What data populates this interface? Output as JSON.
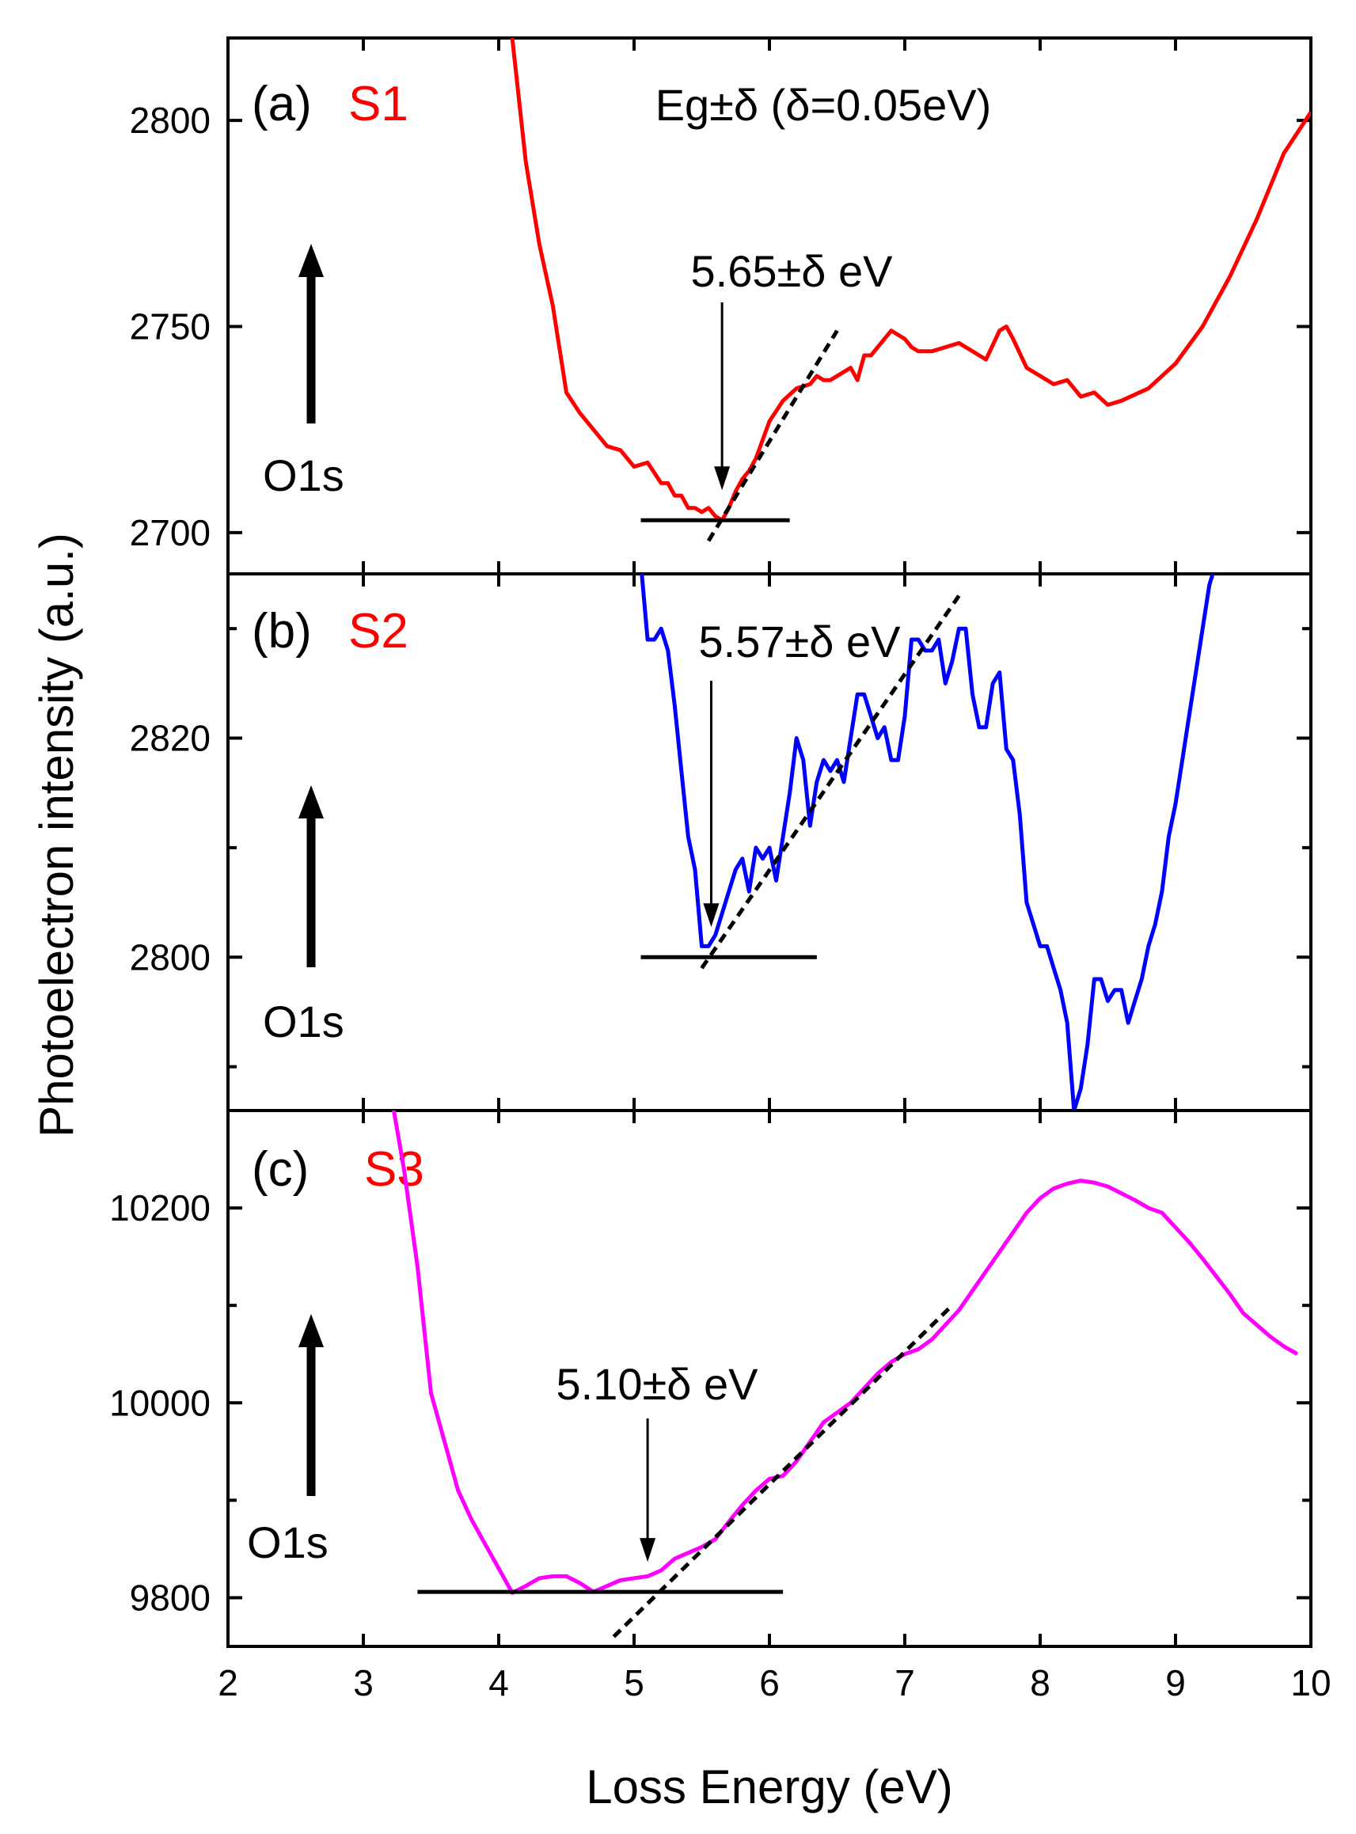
{
  "figure": {
    "xlabel": "Loss Energy (eV)",
    "ylabel": "Photoelectron intensity (a.u.)",
    "header_note": "Eg±δ  (δ=0.05eV)"
  },
  "chart_data": [
    {
      "type": "line",
      "panel": "(a)",
      "sample": "S1",
      "color": "#ff0000",
      "xlim": [
        2,
        10
      ],
      "ylim": [
        2690,
        2820
      ],
      "xticks": [
        2,
        3,
        4,
        5,
        6,
        7,
        8,
        9,
        10
      ],
      "yticks": [
        2700,
        2750,
        2800
      ],
      "ytick_labels": [
        "2700",
        "2750",
        "2800"
      ],
      "core_level": "O1s",
      "gap_label": "5.65±δ eV",
      "gap_energy": 5.65,
      "baseline": {
        "x": [
          5.05,
          6.15
        ],
        "y": 2703
      },
      "tangent": {
        "x": [
          5.55,
          6.5
        ],
        "y": [
          2698,
          2749
        ]
      },
      "series": [
        {
          "name": "S1",
          "x": [
            4.0,
            4.1,
            4.2,
            4.3,
            4.4,
            4.5,
            4.6,
            4.7,
            4.8,
            4.9,
            5.0,
            5.1,
            5.2,
            5.25,
            5.3,
            5.35,
            5.4,
            5.45,
            5.5,
            5.55,
            5.6,
            5.65,
            5.7,
            5.75,
            5.8,
            5.85,
            5.9,
            6.0,
            6.1,
            6.2,
            6.3,
            6.35,
            6.4,
            6.45,
            6.5,
            6.6,
            6.65,
            6.7,
            6.75,
            6.8,
            6.9,
            7.0,
            7.05,
            7.1,
            7.2,
            7.3,
            7.4,
            7.5,
            7.6,
            7.7,
            7.75,
            7.8,
            7.9,
            8.0,
            8.1,
            8.2,
            8.3,
            8.4,
            8.5,
            8.6,
            8.8,
            9.0,
            9.2,
            9.4,
            9.6,
            9.8,
            10.0
          ],
          "y": [
            2840,
            2820,
            2790,
            2770,
            2755,
            2734,
            2729,
            2725,
            2721,
            2720,
            2716,
            2717,
            2712,
            2712,
            2709,
            2709,
            2706,
            2706,
            2705,
            2706,
            2704,
            2703,
            2706,
            2710,
            2713,
            2715,
            2718,
            2727,
            2732,
            2735,
            2736,
            2738,
            2737,
            2737,
            2738,
            2740,
            2737,
            2743,
            2743,
            2745,
            2749,
            2747,
            2745,
            2744,
            2744,
            2745,
            2746,
            2744,
            2742,
            2749,
            2750,
            2747,
            2740,
            2738,
            2736,
            2737,
            2733,
            2734,
            2731,
            2732,
            2735,
            2741,
            2750,
            2762,
            2776,
            2792,
            2802
          ]
        }
      ]
    },
    {
      "type": "line",
      "panel": "(b)",
      "sample": "S2",
      "color": "#0000ff",
      "xlim": [
        2,
        10
      ],
      "ylim": [
        2786,
        2835
      ],
      "xticks": [
        2,
        3,
        4,
        5,
        6,
        7,
        8,
        9,
        10
      ],
      "yticks": [
        2790,
        2800,
        2810,
        2820,
        2830
      ],
      "ytick_labels": [
        "",
        "2800",
        "",
        "2820",
        ""
      ],
      "core_level": "O1s",
      "gap_label": "5.57±δ eV",
      "gap_energy": 5.57,
      "baseline": {
        "x": [
          5.05,
          6.35
        ],
        "y": 2800
      },
      "tangent": {
        "x": [
          5.5,
          7.4
        ],
        "y": [
          2799,
          2833
        ]
      },
      "series": [
        {
          "name": "S2",
          "x": [
            5.05,
            5.1,
            5.15,
            5.2,
            5.25,
            5.3,
            5.35,
            5.4,
            5.45,
            5.5,
            5.55,
            5.6,
            5.65,
            5.7,
            5.75,
            5.8,
            5.85,
            5.9,
            5.95,
            6.0,
            6.05,
            6.1,
            6.15,
            6.2,
            6.25,
            6.3,
            6.35,
            6.4,
            6.45,
            6.5,
            6.55,
            6.6,
            6.65,
            6.7,
            6.75,
            6.8,
            6.85,
            6.9,
            6.95,
            7.0,
            7.05,
            7.1,
            7.15,
            7.2,
            7.25,
            7.3,
            7.35,
            7.4,
            7.45,
            7.5,
            7.55,
            7.6,
            7.65,
            7.7,
            7.75,
            7.8,
            7.85,
            7.9,
            7.95,
            8.0,
            8.05,
            8.1,
            8.15,
            8.2,
            8.25,
            8.3,
            8.35,
            8.4,
            8.45,
            8.5,
            8.55,
            8.6,
            8.65,
            8.7,
            8.75,
            8.8,
            8.85,
            8.9,
            8.95,
            9.0,
            9.05,
            9.1,
            9.15,
            9.2,
            9.25,
            9.3,
            9.35,
            9.4
          ],
          "y": [
            2836,
            2829,
            2829,
            2830,
            2828,
            2823,
            2817,
            2811,
            2808,
            2801,
            2801,
            2802,
            2804,
            2806,
            2808,
            2809,
            2806,
            2810,
            2809,
            2810,
            2807,
            2811,
            2815,
            2820,
            2818,
            2812,
            2816,
            2818,
            2817,
            2818,
            2816,
            2820,
            2824,
            2824,
            2822,
            2820,
            2821,
            2818,
            2818,
            2822,
            2829,
            2829,
            2828,
            2828,
            2829,
            2825,
            2827,
            2830,
            2830,
            2824,
            2821,
            2821,
            2825,
            2826,
            2819,
            2818,
            2813,
            2805,
            2803,
            2801,
            2801,
            2799,
            2797,
            2794,
            2786,
            2788,
            2792,
            2798,
            2798,
            2796,
            2797,
            2797,
            2794,
            2796,
            2798,
            2801,
            2803,
            2806,
            2811,
            2814,
            2818,
            2822,
            2826,
            2830,
            2834,
            2836,
            2840,
            2844
          ]
        }
      ]
    },
    {
      "type": "line",
      "panel": "(c)",
      "sample": "S3",
      "color": "#ff00ff",
      "xlim": [
        2,
        10
      ],
      "ylim": [
        9750,
        10300
      ],
      "xticks": [
        2,
        3,
        4,
        5,
        6,
        7,
        8,
        9,
        10
      ],
      "yticks": [
        9800,
        9900,
        10000,
        10100,
        10200
      ],
      "ytick_labels": [
        "9800",
        "",
        "10000",
        "",
        "10200"
      ],
      "xtick_labels": [
        "2",
        "3",
        "4",
        "5",
        "6",
        "7",
        "8",
        "9",
        "10"
      ],
      "core_level": "O1s",
      "gap_label": "5.10±δ eV",
      "gap_energy": 5.1,
      "baseline": {
        "x": [
          3.4,
          6.1
        ],
        "y": 9806
      },
      "tangent": {
        "x": [
          4.85,
          7.35
        ],
        "y": [
          9760,
          10100
        ]
      },
      "series": [
        {
          "name": "S3",
          "x": [
            3.2,
            3.3,
            3.4,
            3.5,
            3.6,
            3.7,
            3.8,
            3.9,
            4.0,
            4.1,
            4.2,
            4.3,
            4.4,
            4.5,
            4.6,
            4.7,
            4.8,
            4.9,
            5.0,
            5.1,
            5.2,
            5.3,
            5.4,
            5.5,
            5.6,
            5.7,
            5.8,
            5.9,
            6.0,
            6.1,
            6.2,
            6.3,
            6.4,
            6.5,
            6.6,
            6.7,
            6.8,
            6.9,
            7.0,
            7.1,
            7.2,
            7.3,
            7.4,
            7.5,
            7.6,
            7.7,
            7.8,
            7.9,
            8.0,
            8.1,
            8.2,
            8.3,
            8.4,
            8.5,
            8.6,
            8.7,
            8.8,
            8.9,
            9.0,
            9.1,
            9.2,
            9.3,
            9.4,
            9.5,
            9.6,
            9.7,
            9.8,
            9.9
          ],
          "y": [
            10320,
            10240,
            10140,
            10010,
            9960,
            9910,
            9880,
            9855,
            9830,
            9805,
            9812,
            9820,
            9822,
            9822,
            9815,
            9806,
            9812,
            9818,
            9820,
            9822,
            9828,
            9840,
            9846,
            9852,
            9860,
            9878,
            9895,
            9910,
            9922,
            9925,
            9940,
            9960,
            9980,
            9990,
            10000,
            10015,
            10030,
            10042,
            10050,
            10055,
            10065,
            10080,
            10095,
            10115,
            10135,
            10155,
            10175,
            10195,
            10210,
            10220,
            10225,
            10228,
            10226,
            10222,
            10215,
            10208,
            10200,
            10195,
            10180,
            10165,
            10148,
            10130,
            10112,
            10092,
            10080,
            10068,
            10058,
            10050
          ]
        }
      ]
    }
  ]
}
